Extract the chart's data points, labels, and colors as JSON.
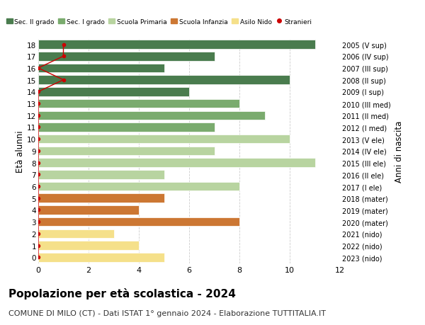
{
  "ages": [
    18,
    17,
    16,
    15,
    14,
    13,
    12,
    11,
    10,
    9,
    8,
    7,
    6,
    5,
    4,
    3,
    2,
    1,
    0
  ],
  "years": [
    "2005 (V sup)",
    "2006 (IV sup)",
    "2007 (III sup)",
    "2008 (II sup)",
    "2009 (I sup)",
    "2010 (III med)",
    "2011 (II med)",
    "2012 (I med)",
    "2013 (V ele)",
    "2014 (IV ele)",
    "2015 (III ele)",
    "2016 (II ele)",
    "2017 (I ele)",
    "2018 (mater)",
    "2019 (mater)",
    "2020 (mater)",
    "2021 (nido)",
    "2022 (nido)",
    "2023 (nido)"
  ],
  "values": [
    11,
    7,
    5,
    10,
    6,
    8,
    9,
    7,
    10,
    7,
    11,
    5,
    8,
    5,
    4,
    8,
    3,
    4,
    5
  ],
  "stranieri_x": [
    1,
    1,
    0,
    1,
    0,
    0,
    0,
    0,
    0,
    0,
    0,
    0,
    0,
    0,
    0,
    0,
    0,
    0,
    0
  ],
  "colors": {
    "sec2": "#4a7c4e",
    "sec1": "#7aab6e",
    "primaria": "#b8d4a0",
    "infanzia": "#cc7733",
    "nido": "#f5e08a",
    "stranieri": "#cc0000"
  },
  "bar_colors": [
    "sec2",
    "sec2",
    "sec2",
    "sec2",
    "sec2",
    "sec1",
    "sec1",
    "sec1",
    "primaria",
    "primaria",
    "primaria",
    "primaria",
    "primaria",
    "infanzia",
    "infanzia",
    "infanzia",
    "nido",
    "nido",
    "nido"
  ],
  "title": "Popolazione per età scolastica - 2024",
  "subtitle": "COMUNE DI MILO (CT) - Dati ISTAT 1° gennaio 2024 - Elaborazione TUTTITALIA.IT",
  "ylabel": "Età alunni",
  "y2label": "Anni di nascita",
  "xlim": [
    0,
    12
  ],
  "xticks": [
    0,
    2,
    4,
    6,
    8,
    10,
    12
  ],
  "bg_color": "#ffffff",
  "grid_color": "#cccccc",
  "title_fontsize": 11,
  "subtitle_fontsize": 8,
  "legend_labels": [
    "Sec. II grado",
    "Sec. I grado",
    "Scuola Primaria",
    "Scuola Infanzia",
    "Asilo Nido",
    "Stranieri"
  ]
}
